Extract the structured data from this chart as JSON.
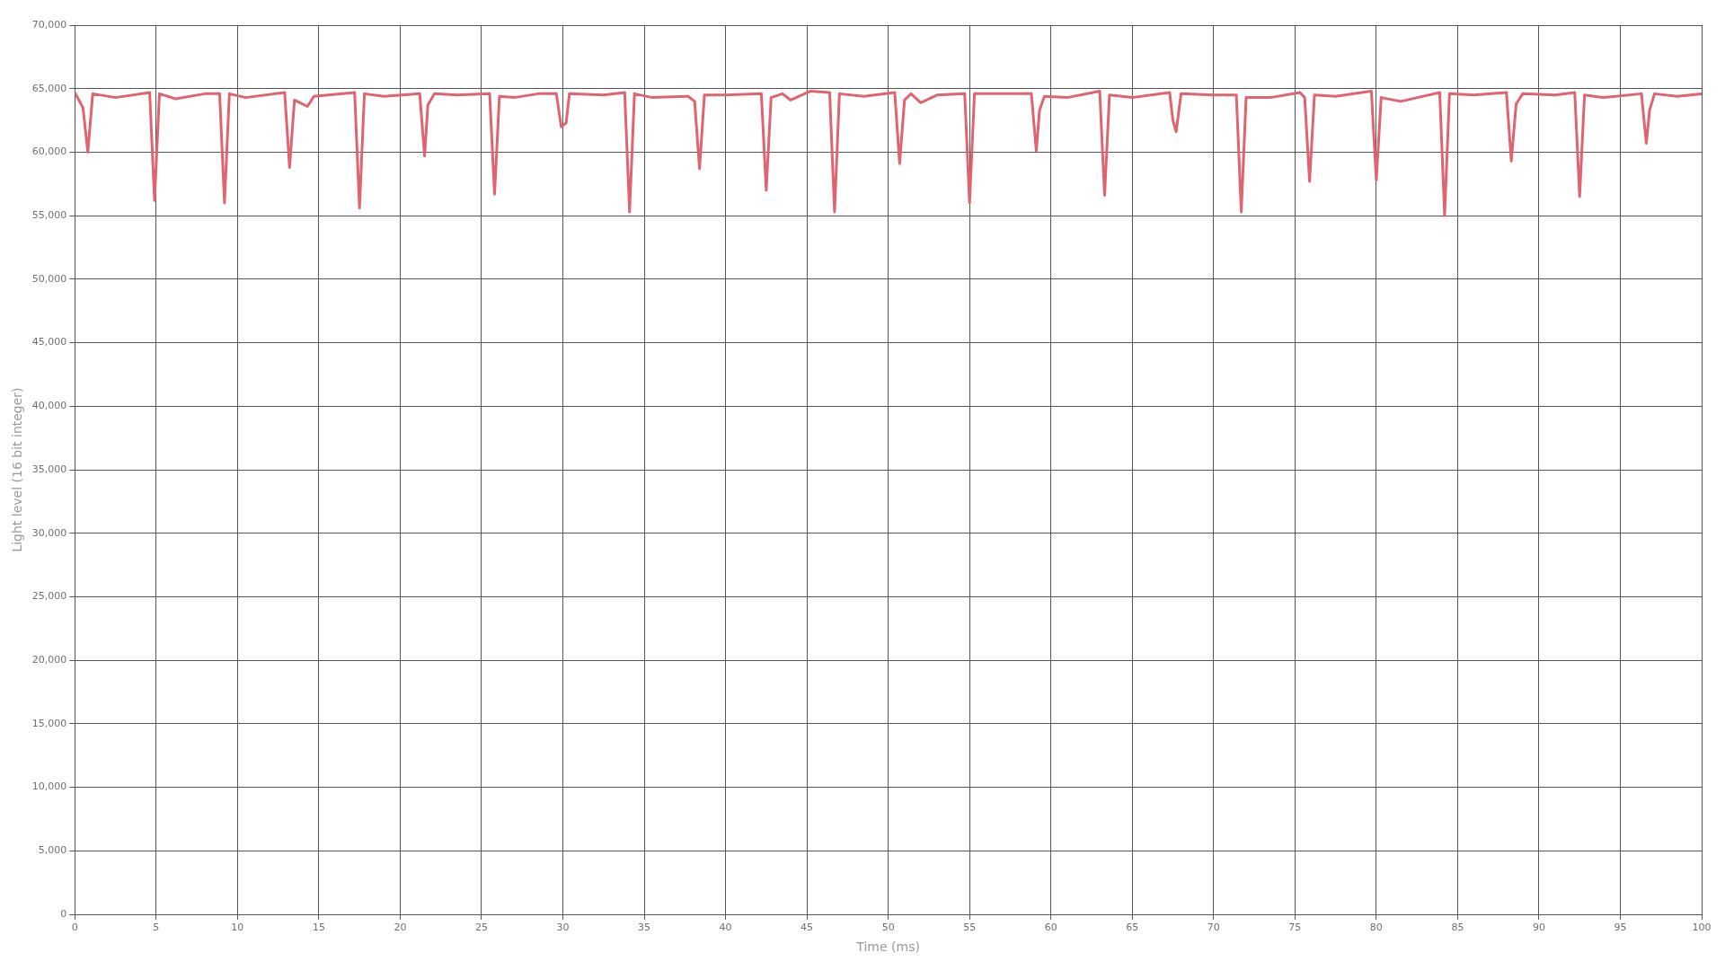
{
  "chart_data": {
    "type": "line",
    "xlabel": "Time (ms)",
    "ylabel": "Light level (16 bit integer)",
    "xlim": [
      0,
      100
    ],
    "xticks": [
      0,
      5,
      10,
      15,
      20,
      25,
      30,
      35,
      40,
      45,
      50,
      55,
      60,
      65,
      70,
      75,
      80,
      85,
      90,
      95,
      100
    ],
    "ylim": [
      0,
      70000
    ],
    "yticks": [
      {
        "value": 0,
        "label": "0"
      },
      {
        "value": 5000,
        "label": "5,000"
      },
      {
        "value": 10000,
        "label": "10,000"
      },
      {
        "value": 15000,
        "label": "15,000"
      },
      {
        "value": 20000,
        "label": "20,000"
      },
      {
        "value": 25000,
        "label": "25,000"
      },
      {
        "value": 30000,
        "label": "30,000"
      },
      {
        "value": 35000,
        "label": "35,000"
      },
      {
        "value": 40000,
        "label": "40,000"
      },
      {
        "value": 45000,
        "label": "45,000"
      },
      {
        "value": 50000,
        "label": "50,000"
      },
      {
        "value": 55000,
        "label": "55,000"
      },
      {
        "value": 60000,
        "label": "60,000"
      },
      {
        "value": 65000,
        "label": "65,000"
      },
      {
        "value": 70000,
        "label": "70,000"
      }
    ],
    "grid": true,
    "legend": false,
    "marker": "none",
    "line_style": "solid",
    "x": [
      0,
      0.5,
      0.8,
      1.1,
      2.5,
      4.6,
      4.9,
      5.2,
      6.2,
      8.0,
      8.9,
      9.2,
      9.5,
      10.5,
      12.9,
      13.2,
      13.5,
      14.3,
      14.7,
      17.2,
      17.5,
      17.8,
      19,
      21.2,
      21.5,
      21.7,
      22.1,
      23.5,
      25.5,
      25.8,
      26.1,
      27,
      28.5,
      29.6,
      29.9,
      30.2,
      30.4,
      32.5,
      33.8,
      34.1,
      34.4,
      35.5,
      37.7,
      38.1,
      38.4,
      38.7,
      40,
      42.2,
      42.5,
      42.8,
      43.5,
      44,
      45.2,
      46.4,
      46.7,
      47.0,
      48.5,
      50.4,
      50.7,
      51.0,
      51.4,
      52,
      53,
      54.7,
      55.0,
      55.3,
      57,
      58.8,
      59.1,
      59.3,
      59.6,
      61,
      63.0,
      63.3,
      63.6,
      65,
      67.3,
      67.5,
      67.7,
      68.0,
      70,
      71.4,
      71.7,
      72.0,
      73.5,
      75.3,
      75.6,
      75.9,
      76.2,
      77.5,
      79.7,
      80.0,
      80.3,
      81.5,
      83.9,
      84.2,
      84.5,
      86,
      88.0,
      88.3,
      88.6,
      89,
      91,
      92.2,
      92.5,
      92.8,
      94,
      96.3,
      96.6,
      96.8,
      97.1,
      98.5,
      100
    ],
    "series": [
      {
        "color": "#e06470",
        "values": [
          64700,
          63500,
          60000,
          64600,
          64300,
          64700,
          56200,
          64600,
          64200,
          64600,
          64600,
          56000,
          64600,
          64300,
          64700,
          58800,
          64100,
          63600,
          64400,
          64700,
          55600,
          64600,
          64400,
          64600,
          59700,
          63700,
          64600,
          64500,
          64600,
          56700,
          64400,
          64300,
          64600,
          64600,
          62000,
          62300,
          64600,
          64500,
          64700,
          55300,
          64600,
          64300,
          64400,
          64000,
          58700,
          64500,
          64500,
          64600,
          57000,
          64300,
          64600,
          64100,
          64800,
          64700,
          55300,
          64600,
          64400,
          64700,
          59100,
          64100,
          64600,
          63900,
          64500,
          64600,
          56000,
          64600,
          64600,
          64600,
          60100,
          63300,
          64400,
          64300,
          64800,
          56600,
          64500,
          64300,
          64700,
          62500,
          61600,
          64600,
          64500,
          64500,
          55300,
          64300,
          64300,
          64700,
          64300,
          57700,
          64500,
          64400,
          64800,
          57800,
          64300,
          64000,
          64700,
          55000,
          64600,
          64500,
          64700,
          59300,
          63800,
          64600,
          64500,
          64700,
          56500,
          64500,
          64300,
          64600,
          60700,
          63300,
          64600,
          64400,
          64600
        ]
      }
    ]
  }
}
